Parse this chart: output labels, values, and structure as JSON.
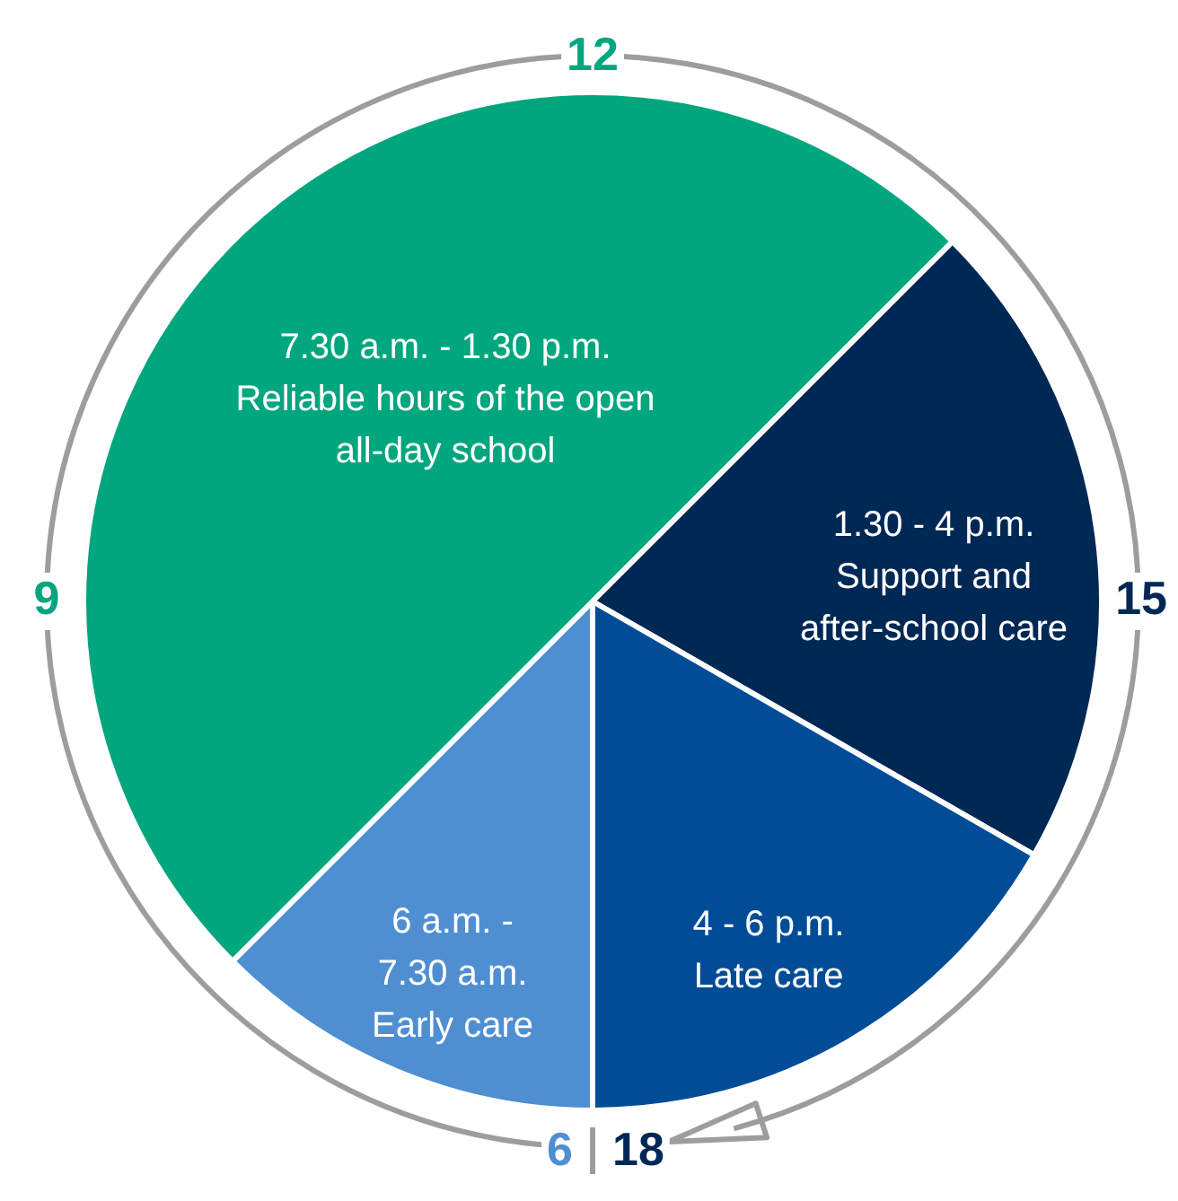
{
  "chart_data": {
    "type": "pie",
    "categories": [
      "6 a.m. -\n7.30 a.m.\nEarly care",
      "7.30 a.m. - 1.30 p.m.\nReliable hours of the open\nall-day school",
      "1.30 - 4 p.m.\nSupport and\nafter-school care",
      "4 - 6 p.m.\nLate care"
    ],
    "values": [
      12.5,
      50,
      20.8,
      16.7
    ],
    "colors": [
      "#4f8fd1",
      "#00a67e",
      "#002855",
      "#004c97"
    ],
    "annotations": [
      "12",
      "15",
      "18",
      "6",
      "9"
    ],
    "legend": false
  }
}
